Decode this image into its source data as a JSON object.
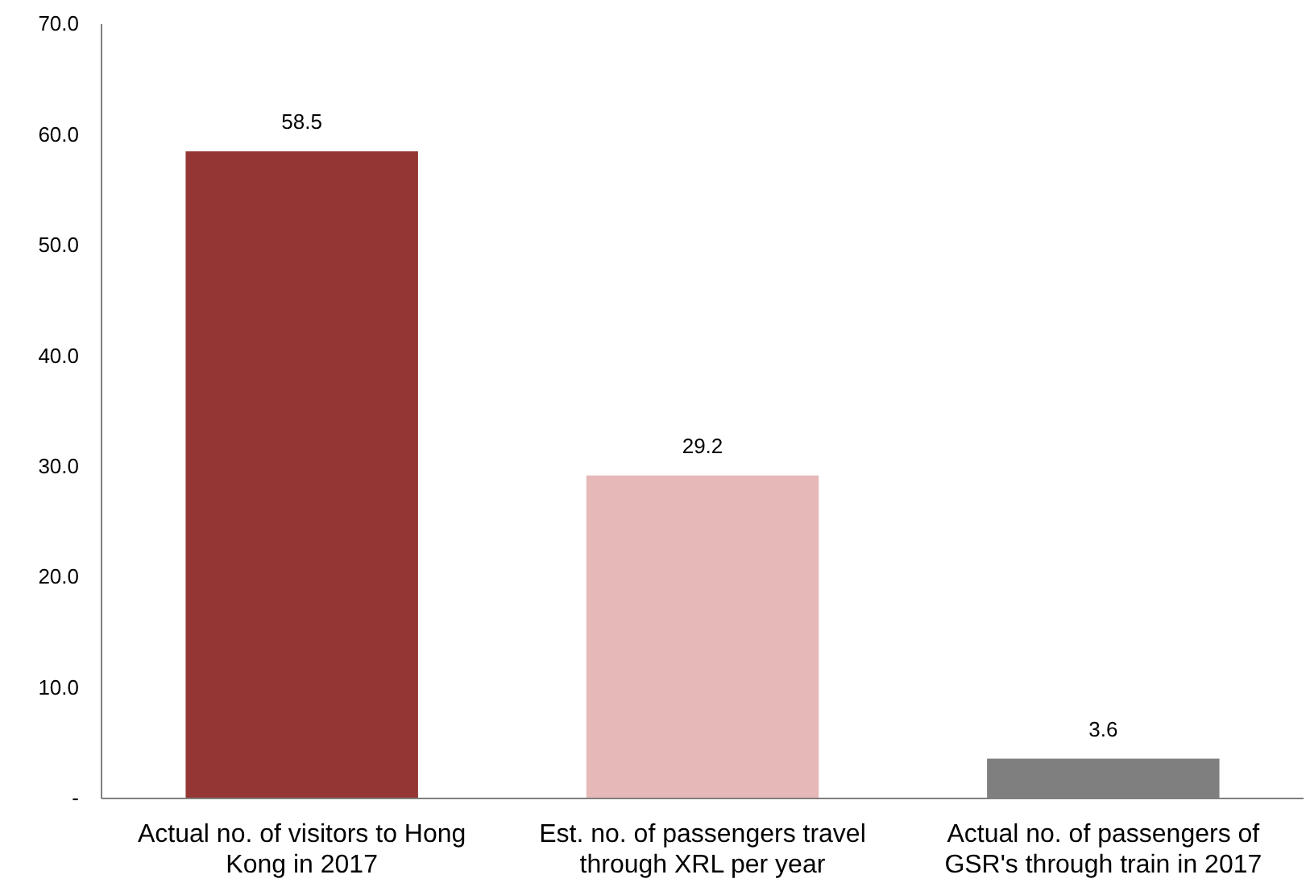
{
  "chart_data": {
    "type": "bar",
    "categories": [
      "Actual no. of visitors to Hong Kong in 2017",
      "Est. no. of passengers travel through XRL per year",
      "Actual no. of passengers of GSR's through train in 2017"
    ],
    "values": [
      58.5,
      29.2,
      3.6
    ],
    "colors": [
      "#943634",
      "#e6b9b8",
      "#7f7f7f"
    ],
    "ylim": [
      0,
      70
    ],
    "yticks": [
      {
        "value": 0,
        "label": "-"
      },
      {
        "value": 10,
        "label": "10.0"
      },
      {
        "value": 20,
        "label": "20.0"
      },
      {
        "value": 30,
        "label": "30.0"
      },
      {
        "value": 40,
        "label": "40.0"
      },
      {
        "value": 50,
        "label": "50.0"
      },
      {
        "value": 60,
        "label": "60.0"
      },
      {
        "value": 70,
        "label": "70.0"
      }
    ],
    "data_labels": true,
    "grid": false
  }
}
